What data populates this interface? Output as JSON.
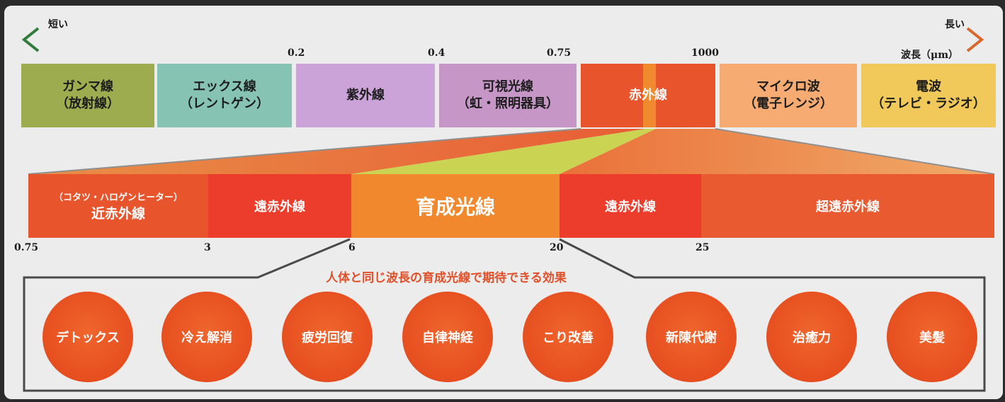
{
  "scale": {
    "short_label": "短い",
    "long_label": "長い",
    "unit_label": "波長（μm）",
    "ticks": [
      "0.2",
      "0.4",
      "0.75",
      "1000"
    ]
  },
  "bands": [
    {
      "name": "ガンマ線",
      "detail": "（放射線）",
      "color": "#9cac4f"
    },
    {
      "name": "エックス線",
      "detail": "（レントゲン）",
      "color": "#86c3b2"
    },
    {
      "name": "紫外線",
      "detail": "",
      "color": "#cba3d8"
    },
    {
      "name": "可視光線",
      "detail": "（虹・照明器具）",
      "color": "#c596c6"
    },
    {
      "name": "赤外線",
      "detail": "",
      "color": "#e8552c"
    },
    {
      "name": "マイクロ波",
      "detail": "（電子レンジ）",
      "color": "#f5ab72"
    },
    {
      "name": "電波",
      "detail": "（テレビ・ラジオ）",
      "color": "#f0c95a"
    }
  ],
  "infrared": {
    "sub_bands": [
      {
        "name": "近赤外線",
        "note": "（コタツ・ハロゲンヒーター）",
        "color": "#e8552c"
      },
      {
        "name": "遠赤外線",
        "note": "",
        "color": "#ec3d2c"
      },
      {
        "name": "育成光線",
        "note": "",
        "color": "#f2882e"
      },
      {
        "name": "遠赤外線",
        "note": "",
        "color": "#ec3d2c"
      },
      {
        "name": "超遠赤外線",
        "note": "",
        "color": "#ea5a30"
      }
    ],
    "ticks": [
      "0.75",
      "3",
      "6",
      "20",
      "25"
    ]
  },
  "effects": {
    "title": "人体と同じ波長の育成光線で期待できる効果",
    "items": [
      "デトックス",
      "冷え解消",
      "疲労回復",
      "自律神経",
      "こり改善",
      "新陳代謝",
      "治癒力",
      "美髪"
    ]
  }
}
